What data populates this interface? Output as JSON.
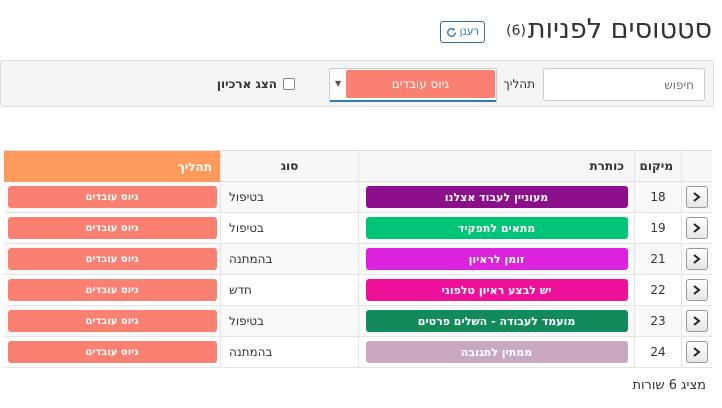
{
  "header": {
    "title": "סטטוסים לפניות",
    "count": "(6)",
    "refresh_label": "רענן"
  },
  "filters": {
    "search_placeholder": "חיפוש",
    "process_label": "תהליך",
    "process_value": "גיוס עובדים",
    "show_archive_label": "הצג ארכיון"
  },
  "table": {
    "columns": {
      "position": "מיקום",
      "title": "כותרת",
      "type": "סוג",
      "process": "תהליך"
    },
    "rows": [
      {
        "position": "18",
        "title": "מעוניין לעבוד אצלנו",
        "color": "#8b0f8b",
        "type": "בטיפול",
        "process": "גיוס עובדים"
      },
      {
        "position": "19",
        "title": "מתאים לתפקיד",
        "color": "#00c477",
        "type": "בטיפול",
        "process": "גיוס עובדים"
      },
      {
        "position": "21",
        "title": "זומן לראיון",
        "color": "#dc22dc",
        "type": "בהמתנה",
        "process": "גיוס עובדים"
      },
      {
        "position": "22",
        "title": "יש לבצע ראיון טלפוני",
        "color": "#ee1199",
        "type": "חדש",
        "process": "גיוס עובדים"
      },
      {
        "position": "23",
        "title": "מועמד לעבודה - השלים פרטים",
        "color": "#138a5c",
        "type": "בטיפול",
        "process": "גיוס עובדים"
      },
      {
        "position": "24",
        "title": "ממתין לתגובה",
        "color": "#c9a8c4",
        "type": "בהמתנה",
        "process": "גיוס עובדים"
      }
    ]
  },
  "footer": {
    "rows_count_label": "מציג 6 שורות"
  },
  "colors": {
    "accent": "#337ab7",
    "process_header": "#ff9a5c",
    "process_tag": "#fa8072"
  }
}
